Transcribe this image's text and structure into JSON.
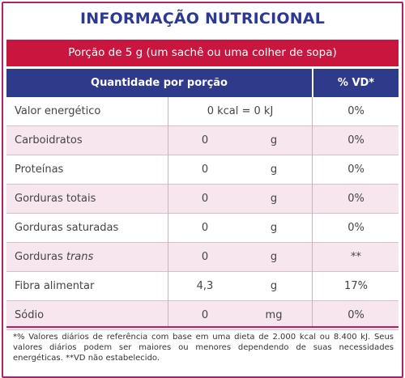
{
  "title": "INFORMAÇÃO NUTRICIONAL",
  "portion": "Porção de 5 g (um sachê ou uma colher de sopa)",
  "header": {
    "quantity": "Quantidade por porção",
    "vd": "% VD*"
  },
  "rows": [
    {
      "name": "Valor energético",
      "name_italic": "",
      "combined": "0 kcal = 0 kJ",
      "vd": "0%"
    },
    {
      "name": "Carboidratos",
      "name_italic": "",
      "qty": "0",
      "unit": "g",
      "vd": "0%"
    },
    {
      "name": "Proteínas",
      "name_italic": "",
      "qty": "0",
      "unit": "g",
      "vd": "0%"
    },
    {
      "name": "Gorduras totais",
      "name_italic": "",
      "qty": "0",
      "unit": "g",
      "vd": "0%"
    },
    {
      "name": "Gorduras saturadas",
      "name_italic": "",
      "qty": "0",
      "unit": "g",
      "vd": "0%"
    },
    {
      "name": "Gorduras",
      "name_italic": "trans",
      "qty": "0",
      "unit": "g",
      "vd": "**"
    },
    {
      "name": "Fibra alimentar",
      "name_italic": "",
      "qty": "4,3",
      "unit": "g",
      "vd": "17%"
    },
    {
      "name": "Sódio",
      "name_italic": "",
      "qty": "0",
      "unit": "mg",
      "vd": "0%"
    }
  ],
  "footnote": "*% Valores diários de referência com base em uma dieta de 2.000 kcal ou 8.400 kJ. Seus valores diários podem ser maiores ou menores dependendo de suas necessidades energéticas. **VD não estabelecido.",
  "colors": {
    "border": "#b3206a",
    "portion_bg": "#c8163e",
    "header_bg": "#2e3b8a",
    "title": "#2b3990",
    "shade": "#f7e6ee"
  }
}
